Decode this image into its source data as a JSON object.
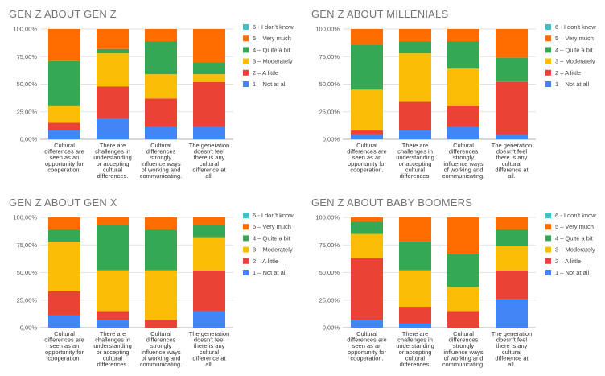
{
  "chart_data": [
    {
      "type": "bar",
      "stacked": true,
      "title": "GEN Z ABOUT GEN Z",
      "categories": [
        [
          "Cultural",
          "differences are",
          "seen as an",
          "opportunity for",
          "cooperation."
        ],
        [
          "There are",
          "challenges in",
          "understanding",
          "or accepting",
          "cultural",
          "differences."
        ],
        [
          "Cultural",
          "differences",
          "strongly",
          "influence ways",
          "of working and",
          "communicating."
        ],
        [
          "The generation",
          "doesn't feel",
          "there is any",
          "cultural",
          "difference at",
          "all."
        ]
      ],
      "series": [
        {
          "name": "1 – Not at all",
          "values": [
            8,
            19,
            11,
            11
          ]
        },
        {
          "name": "2 – A little",
          "values": [
            7,
            29,
            26,
            41
          ]
        },
        {
          "name": "3 – Moderately",
          "values": [
            15,
            30,
            22,
            7
          ]
        },
        {
          "name": "4 – Quite a bit",
          "values": [
            41,
            4,
            30,
            11
          ]
        },
        {
          "name": "5 – Very much",
          "values": [
            29,
            18,
            11,
            30
          ]
        },
        {
          "name": "6 - I don't know",
          "values": [
            0,
            0,
            0,
            0
          ]
        }
      ],
      "ytick_labels": [
        "0,00%",
        "25,00%",
        "50,00%",
        "75,00%",
        "100,00%"
      ],
      "ylim": [
        0,
        100
      ],
      "legend_position": "right",
      "grid": true
    },
    {
      "type": "bar",
      "stacked": true,
      "title": "GEN Z ABOUT MILLENIALS",
      "categories": [
        [
          "Cultural",
          "differences are",
          "seen as an",
          "opportunity for",
          "cooperation."
        ],
        [
          "There are",
          "challenges in",
          "understanding",
          "or accepting",
          "cultural",
          "differences."
        ],
        [
          "Cultural",
          "differences",
          "strongly",
          "influence ways",
          "of working and",
          "communicating."
        ],
        [
          "The generation",
          "doesn't feel",
          "there is any",
          "cultural",
          "difference at",
          "all."
        ]
      ],
      "series": [
        {
          "name": "1 – Not at all",
          "values": [
            4,
            8,
            11,
            4
          ]
        },
        {
          "name": "2 – A little",
          "values": [
            4,
            26,
            19,
            48
          ]
        },
        {
          "name": "3 – Moderately",
          "values": [
            37,
            44,
            34,
            0
          ]
        },
        {
          "name": "4 – Quite a bit",
          "values": [
            41,
            11,
            25,
            22
          ]
        },
        {
          "name": "5 – Very much",
          "values": [
            14,
            11,
            11,
            26
          ]
        },
        {
          "name": "6 - I don't know",
          "values": [
            0,
            0,
            0,
            0
          ]
        }
      ],
      "ytick_labels": [
        "0,00%",
        "25,00%",
        "50,00%",
        "75,00%",
        "100,00%"
      ],
      "ylim": [
        0,
        100
      ],
      "legend_position": "right",
      "grid": true
    },
    {
      "type": "bar",
      "stacked": true,
      "title": "GEN Z ABOUT GEN X",
      "categories": [
        [
          "Cultural",
          "differences are",
          "seen as an",
          "opportunity for",
          "cooperation."
        ],
        [
          "There are",
          "challenges in",
          "understanding",
          "or accepting",
          "cultural",
          "differences."
        ],
        [
          "Cultural",
          "differences",
          "strongly",
          "influence ways",
          "of working and",
          "communicating."
        ],
        [
          "The generation",
          "doesn't feel",
          "there is any",
          "cultural",
          "difference at",
          "all."
        ]
      ],
      "series": [
        {
          "name": "1 – Not at all",
          "values": [
            11,
            7,
            0,
            15
          ]
        },
        {
          "name": "2 – A little",
          "values": [
            22,
            8,
            7,
            37
          ]
        },
        {
          "name": "3 – Moderately",
          "values": [
            45,
            37,
            45,
            30
          ]
        },
        {
          "name": "4 – Quite a bit",
          "values": [
            11,
            41,
            37,
            11
          ]
        },
        {
          "name": "5 – Very much",
          "values": [
            11,
            7,
            11,
            7
          ]
        },
        {
          "name": "6 - I don't know",
          "values": [
            0,
            0,
            0,
            0
          ]
        }
      ],
      "ytick_labels": [
        "0,00%",
        "25,00%",
        "50,00%",
        "75,00%",
        "100,00%"
      ],
      "ylim": [
        0,
        100
      ],
      "legend_position": "right",
      "grid": true
    },
    {
      "type": "bar",
      "stacked": true,
      "title": "GEN Z ABOUT BABY BOOMERS",
      "categories": [
        [
          "Cultural",
          "differences are",
          "seen as an",
          "opportunity for",
          "cooperation."
        ],
        [
          "There are",
          "challenges in",
          "understanding",
          "or accepting",
          "cultural",
          "differences."
        ],
        [
          "Cultural",
          "differences",
          "strongly",
          "influence ways",
          "of working and",
          "communicating."
        ],
        [
          "The generation",
          "doesn't feel",
          "there is any",
          "cultural",
          "difference at",
          "all."
        ]
      ],
      "series": [
        {
          "name": "1 – Not at all",
          "values": [
            7,
            4,
            0,
            26
          ]
        },
        {
          "name": "2 – A little",
          "values": [
            56,
            15,
            15,
            26
          ]
        },
        {
          "name": "3 – Moderately",
          "values": [
            22,
            33,
            22,
            22
          ]
        },
        {
          "name": "4 – Quite a bit",
          "values": [
            11,
            26,
            30,
            15
          ]
        },
        {
          "name": "5 – Very much",
          "values": [
            4,
            22,
            33,
            11
          ]
        },
        {
          "name": "6 - I don't know",
          "values": [
            0,
            0,
            0,
            0
          ]
        }
      ],
      "ytick_labels": [
        "0,00%",
        "25,00%",
        "50,00%",
        "75,00%",
        "100,00%"
      ],
      "ylim": [
        0,
        100
      ],
      "legend_position": "right",
      "grid": true
    }
  ],
  "legend": [
    {
      "name": "6 - I don't know",
      "color": "#46bdc6"
    },
    {
      "name": "5 – Very much",
      "color": "#ff6d01"
    },
    {
      "name": "4 – Quite a bit",
      "color": "#34a853"
    },
    {
      "name": "3 – Moderately",
      "color": "#fbbc04"
    },
    {
      "name": "2 – A little",
      "color": "#ea4335"
    },
    {
      "name": "1 – Not at all",
      "color": "#4285f4"
    }
  ],
  "series_colors": {
    "1 – Not at all": "#4285f4",
    "2 – A little": "#ea4335",
    "3 – Moderately": "#fbbc04",
    "4 – Quite a bit": "#34a853",
    "5 – Very much": "#ff6d01",
    "6 - I don't know": "#46bdc6"
  }
}
